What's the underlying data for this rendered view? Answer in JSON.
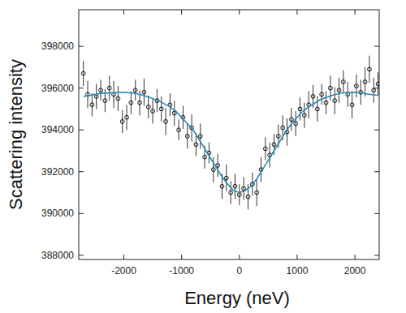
{
  "chart_data": {
    "type": "scatter",
    "x_label": "Energy (neV)",
    "y_label": "Scattering intensity",
    "xlim": [
      -2780,
      2420
    ],
    "ylim": [
      387800,
      399750
    ],
    "xticks": [
      -2000,
      -1000,
      0,
      1000,
      2000
    ],
    "yticks": [
      388000,
      390000,
      392000,
      394000,
      396000,
      398000
    ],
    "grid": false,
    "series": [
      {
        "type": "scatter",
        "marker": "circle",
        "color": "#000000",
        "x": [
          -2700,
          -2625,
          -2550,
          -2475,
          -2400,
          -2325,
          -2250,
          -2175,
          -2100,
          -2025,
          -1950,
          -1875,
          -1800,
          -1725,
          -1650,
          -1575,
          -1500,
          -1425,
          -1350,
          -1275,
          -1200,
          -1125,
          -1050,
          -975,
          -900,
          -825,
          -750,
          -675,
          -600,
          -525,
          -450,
          -375,
          -300,
          -225,
          -150,
          -75,
          0,
          75,
          150,
          225,
          300,
          375,
          450,
          525,
          600,
          675,
          750,
          825,
          900,
          975,
          1050,
          1125,
          1200,
          1275,
          1350,
          1425,
          1500,
          1575,
          1650,
          1725,
          1800,
          1875,
          1950,
          2025,
          2100,
          2175,
          2250,
          2325,
          2400
        ],
        "values": [
          396700,
          395700,
          395200,
          395600,
          395900,
          395400,
          396000,
          395700,
          395500,
          394400,
          394600,
          395300,
          395900,
          395300,
          395800,
          395100,
          394900,
          395400,
          395000,
          394400,
          395200,
          394800,
          394000,
          394600,
          393700,
          394100,
          393300,
          393700,
          392700,
          392900,
          392100,
          392300,
          391300,
          391700,
          391000,
          391300,
          390900,
          391200,
          390800,
          391400,
          391000,
          392100,
          393100,
          392800,
          393300,
          393700,
          394100,
          393900,
          394500,
          394300,
          395000,
          394700,
          395200,
          395600,
          395000,
          395700,
          395300,
          396000,
          395400,
          395900,
          396300,
          395700,
          395200,
          396100,
          395800,
          396300,
          396900,
          395900,
          396200
        ],
        "errors": [
          600,
          650,
          550,
          600,
          500,
          550,
          600,
          650,
          600,
          550,
          600,
          550,
          500,
          600,
          650,
          550,
          600,
          550,
          600,
          650,
          550,
          600,
          500,
          550,
          600,
          650,
          550,
          600,
          550,
          500,
          600,
          550,
          600,
          650,
          550,
          600,
          500,
          550,
          600,
          550,
          650,
          600,
          550,
          600,
          500,
          550,
          600,
          650,
          550,
          600,
          550,
          600,
          650,
          550,
          600,
          500,
          550,
          600,
          650,
          600,
          550,
          600,
          650,
          550,
          600,
          700,
          650,
          600,
          550
        ]
      },
      {
        "type": "line",
        "line_style": "solid",
        "color": "#2a8ab8",
        "x": [
          -2700,
          -2400,
          -2000,
          -1800,
          -1600,
          -1400,
          -1200,
          -1100,
          -1000,
          -900,
          -800,
          -700,
          -600,
          -500,
          -400,
          -300,
          -200,
          -100,
          0,
          100,
          200,
          300,
          400,
          500,
          600,
          700,
          800,
          900,
          1000,
          1100,
          1200,
          1400,
          1600,
          1800,
          2000,
          2400
        ],
        "values": [
          395600,
          395750,
          395800,
          395750,
          395600,
          395400,
          395100,
          394900,
          394600,
          394300,
          394000,
          393550,
          393100,
          392650,
          392200,
          391750,
          391400,
          391100,
          391000,
          391100,
          391300,
          391650,
          392100,
          392550,
          393000,
          393450,
          393900,
          394300,
          394600,
          394900,
          395100,
          395450,
          395650,
          395780,
          395800,
          395650
        ]
      }
    ]
  }
}
